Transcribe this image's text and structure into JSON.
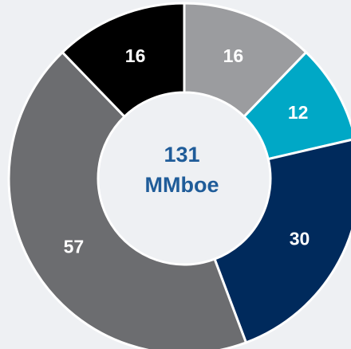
{
  "chart_data": {
    "type": "donut",
    "values": [
      16,
      12,
      30,
      57,
      16
    ],
    "colors": [
      "#9b9c9f",
      "#00a8c6",
      "#002a5c",
      "#6c6d70",
      "#000000"
    ],
    "center_label": [
      "131",
      "MMboe"
    ]
  }
}
